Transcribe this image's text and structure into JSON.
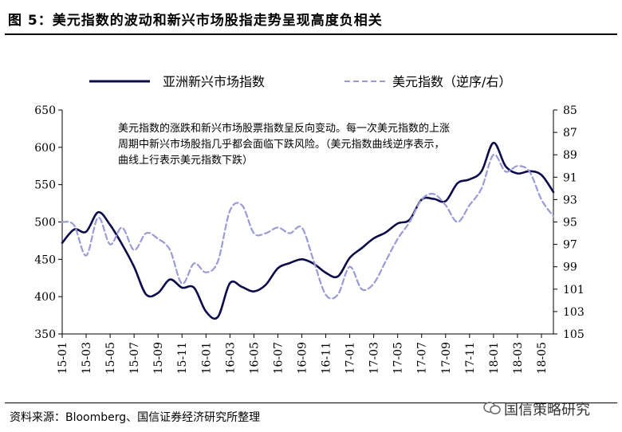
{
  "title": "图 5：美元指数的波动和新兴市场股指走势呈现高度负相关",
  "source": "资料来源：Bloomberg、国信证券经济研究所整理",
  "watermark": "国信策略研究",
  "note": "美元指数的涨跌和新兴市场股票指数呈反向变动。每一次美元指数的上涨周期中新兴市场股指几乎都会面临下跌风险。（美元指数曲线逆序表示，曲线上行表示美元指数下跌）",
  "colors": {
    "asia": "#0b0b4a",
    "usd": "#9a9ad6",
    "axis": "#000000"
  },
  "chart_data": {
    "type": "line",
    "x_tick_labels": [
      "15-01",
      "15-03",
      "15-05",
      "15-07",
      "15-09",
      "15-11",
      "16-01",
      "16-03",
      "16-05",
      "16-07",
      "16-09",
      "16-11",
      "17-01",
      "17-03",
      "17-05",
      "17-07",
      "17-09",
      "17-11",
      "18-01",
      "18-03",
      "18-05"
    ],
    "y_left": {
      "min": 350,
      "max": 650,
      "ticks": [
        "350",
        "400",
        "450",
        "500",
        "550",
        "600",
        "650"
      ]
    },
    "y_right": {
      "min": 85,
      "max": 105,
      "reversed": true,
      "ticks": [
        "85",
        "87",
        "89",
        "91",
        "93",
        "95",
        "97",
        "99",
        "101",
        "103",
        "105"
      ]
    },
    "grid": false,
    "legend_position": "top",
    "series": [
      {
        "name": "亚洲新兴市场指数",
        "axis": "left",
        "style": "solid",
        "points": [
          [
            0,
            472
          ],
          [
            1,
            490
          ],
          [
            2,
            487
          ],
          [
            3,
            513
          ],
          [
            4,
            496
          ],
          [
            5,
            470
          ],
          [
            6,
            440
          ],
          [
            7,
            403
          ],
          [
            8,
            405
          ],
          [
            9,
            423
          ],
          [
            10,
            412
          ],
          [
            11,
            412
          ],
          [
            12,
            380
          ],
          [
            13,
            373
          ],
          [
            14,
            418
          ],
          [
            15,
            413
          ],
          [
            16,
            407
          ],
          [
            17,
            416
          ],
          [
            18,
            438
          ],
          [
            19,
            445
          ],
          [
            20,
            450
          ],
          [
            21,
            444
          ],
          [
            22,
            432
          ],
          [
            23,
            427
          ],
          [
            24,
            452
          ],
          [
            25,
            465
          ],
          [
            26,
            478
          ],
          [
            27,
            486
          ],
          [
            28,
            498
          ],
          [
            29,
            503
          ],
          [
            30,
            530
          ],
          [
            31,
            531
          ],
          [
            32,
            528
          ],
          [
            33,
            552
          ],
          [
            34,
            557
          ],
          [
            35,
            568
          ],
          [
            36,
            606
          ],
          [
            37,
            575
          ],
          [
            38,
            565
          ],
          [
            39,
            568
          ],
          [
            40,
            563
          ],
          [
            41,
            540
          ]
        ]
      },
      {
        "name": "美元指数（逆序/右）",
        "axis": "right",
        "style": "dashed",
        "points": [
          [
            0,
            95
          ],
          [
            1,
            95.3
          ],
          [
            2,
            98
          ],
          [
            3,
            94.6
          ],
          [
            4,
            97
          ],
          [
            5,
            95.5
          ],
          [
            6,
            97.5
          ],
          [
            7,
            96
          ],
          [
            8,
            96.5
          ],
          [
            9,
            97.5
          ],
          [
            10,
            100.5
          ],
          [
            11,
            98.7
          ],
          [
            12,
            99.5
          ],
          [
            13,
            98.5
          ],
          [
            14,
            94
          ],
          [
            15,
            93.5
          ],
          [
            16,
            96
          ],
          [
            17,
            96
          ],
          [
            18,
            95.5
          ],
          [
            19,
            96
          ],
          [
            20,
            95.5
          ],
          [
            21,
            98.5
          ],
          [
            22,
            101.5
          ],
          [
            23,
            101.5
          ],
          [
            24,
            99
          ],
          [
            25,
            101
          ],
          [
            26,
            100.5
          ],
          [
            27,
            98.5
          ],
          [
            28,
            96.5
          ],
          [
            29,
            95
          ],
          [
            30,
            93
          ],
          [
            31,
            92.5
          ],
          [
            32,
            93.5
          ],
          [
            33,
            95
          ],
          [
            34,
            93.5
          ],
          [
            35,
            92
          ],
          [
            36,
            89
          ],
          [
            37,
            90.5
          ],
          [
            38,
            90
          ],
          [
            39,
            90.5
          ],
          [
            40,
            93
          ],
          [
            41,
            94.5
          ]
        ]
      }
    ]
  }
}
